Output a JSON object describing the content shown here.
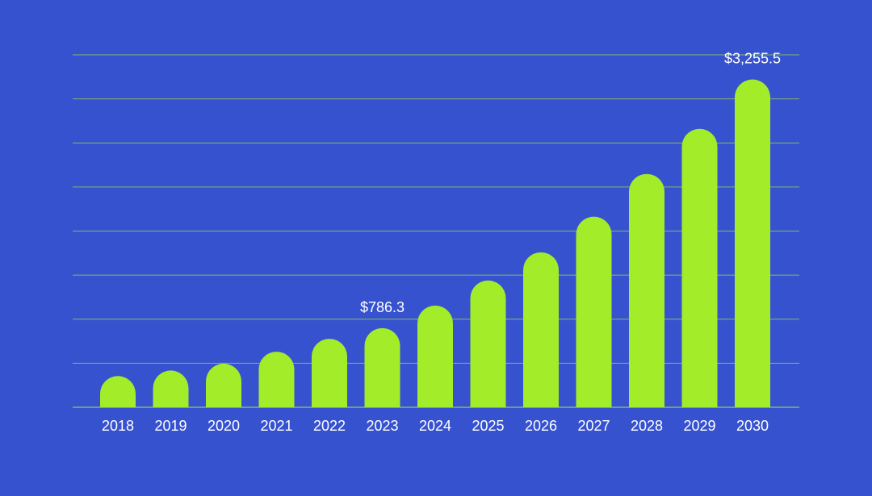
{
  "colors": {
    "background": "#3652cf",
    "bar": "#a3ec2a",
    "gridline": "#86b56e",
    "text": "#ffffff"
  },
  "chart_data": {
    "type": "bar",
    "title": "",
    "xlabel": "",
    "ylabel": "",
    "categories": [
      "2018",
      "2019",
      "2020",
      "2021",
      "2022",
      "2023",
      "2024",
      "2025",
      "2026",
      "2027",
      "2028",
      "2029",
      "2030"
    ],
    "values": [
      310,
      365,
      433,
      552,
      680,
      786.3,
      1010,
      1259,
      1539,
      1893,
      2317,
      2765,
      3255.5
    ],
    "data_labels": [
      {
        "index": 5,
        "text": "$786.3"
      },
      {
        "index": 12,
        "text": "$3,255.5"
      }
    ],
    "ylim": [
      0,
      3500
    ],
    "gridlines": 8,
    "y_tick_labels_shown": false,
    "grid": true,
    "legend": "none"
  }
}
